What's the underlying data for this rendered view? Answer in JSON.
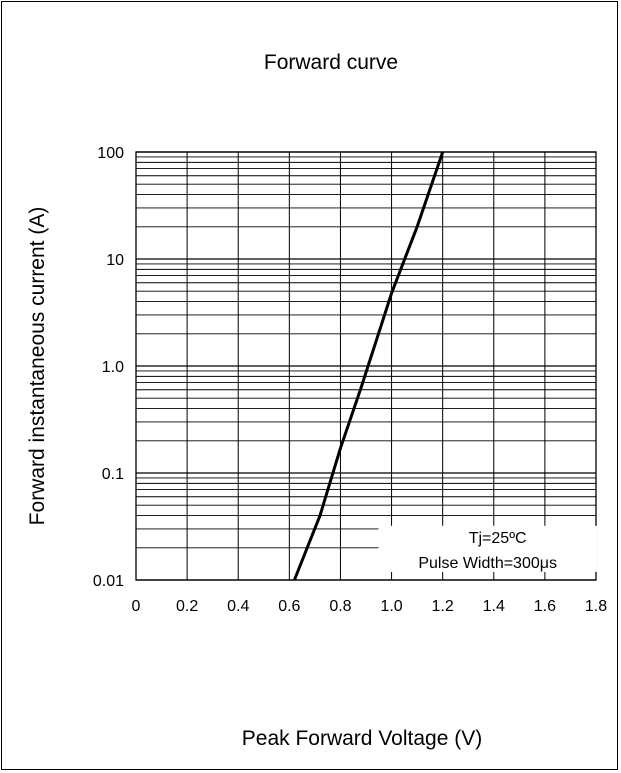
{
  "chart_data": {
    "type": "line",
    "title": "Forward curve",
    "xlabel": "Peak Forward Voltage (V)",
    "ylabel": "Forward instantaneous current (A)",
    "x_scale": "linear",
    "y_scale": "log",
    "xlim": [
      0,
      1.8
    ],
    "ylim": [
      0.01,
      100
    ],
    "x_ticks": [
      "0",
      "0.2",
      "0.4",
      "0.6",
      "0.8",
      "1.0",
      "1.2",
      "1.4",
      "1.6",
      "1.8"
    ],
    "y_ticks": [
      "0.01",
      "0.1",
      "1.0",
      "10",
      "100"
    ],
    "grid": true,
    "series": [
      {
        "name": "",
        "color": "#000000",
        "points": [
          {
            "x": 0.62,
            "y": 0.01
          },
          {
            "x": 0.72,
            "y": 0.04
          },
          {
            "x": 0.8,
            "y": 0.17
          },
          {
            "x": 0.88,
            "y": 0.62
          },
          {
            "x": 1.0,
            "y": 4.8
          },
          {
            "x": 1.1,
            "y": 20
          },
          {
            "x": 1.2,
            "y": 100
          }
        ]
      }
    ],
    "annotation": {
      "lines": [
        "Tj=25ºC",
        "Pulse Width=300μs"
      ],
      "placement": "bottom-right"
    }
  }
}
